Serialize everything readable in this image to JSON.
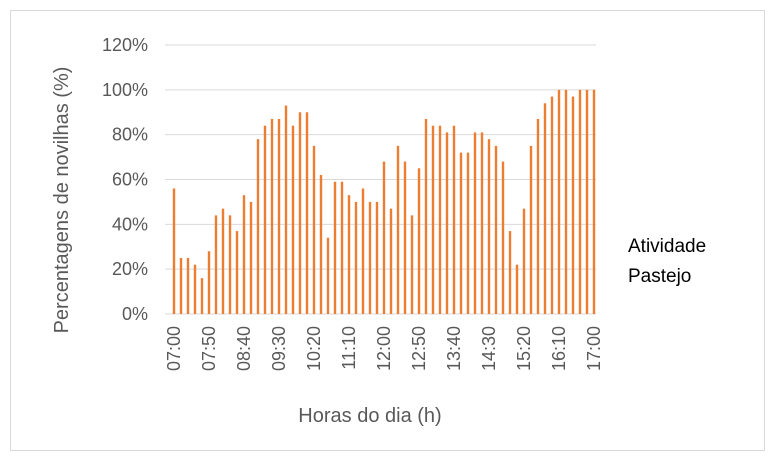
{
  "chart_data": {
    "type": "bar",
    "x_label": "Horas do dia (h)",
    "y_label": "Percentagens de novilhas (%)",
    "categories": [
      "07:00",
      null,
      null,
      null,
      null,
      "07:50",
      null,
      null,
      null,
      null,
      "08:40",
      null,
      null,
      null,
      null,
      "09:30",
      null,
      null,
      null,
      null,
      "10:20",
      null,
      null,
      null,
      null,
      "11:10",
      null,
      null,
      null,
      null,
      "12:00",
      null,
      null,
      null,
      null,
      "12:50",
      null,
      null,
      null,
      null,
      "13:40",
      null,
      null,
      null,
      null,
      "14:30",
      null,
      null,
      null,
      null,
      "15:20",
      null,
      null,
      null,
      null,
      "16:10",
      null,
      null,
      null,
      null,
      "17:00"
    ],
    "series": [
      {
        "name": "Atividade Pastejo",
        "color": "#ed7d31",
        "values": [
          56,
          25,
          25,
          22,
          16,
          28,
          44,
          47,
          44,
          37,
          53,
          50,
          78,
          84,
          87,
          87,
          93,
          84,
          90,
          90,
          75,
          62,
          34,
          59,
          59,
          53,
          50,
          56,
          50,
          50,
          68,
          47,
          75,
          68,
          44,
          65,
          87,
          84,
          84,
          81,
          84,
          72,
          72,
          81,
          81,
          78,
          75,
          68,
          37,
          22,
          47,
          75,
          87,
          94,
          97,
          100,
          100,
          97,
          100,
          100,
          100
        ]
      }
    ],
    "ylim": [
      0,
      120
    ],
    "yticks": [
      {
        "value": 0,
        "label": "0%"
      },
      {
        "value": 20,
        "label": "20%"
      },
      {
        "value": 40,
        "label": "40%"
      },
      {
        "value": 60,
        "label": "60%"
      },
      {
        "value": 80,
        "label": "80%"
      },
      {
        "value": 100,
        "label": "100%"
      },
      {
        "value": 120,
        "label": "120%"
      }
    ],
    "grid": true
  }
}
